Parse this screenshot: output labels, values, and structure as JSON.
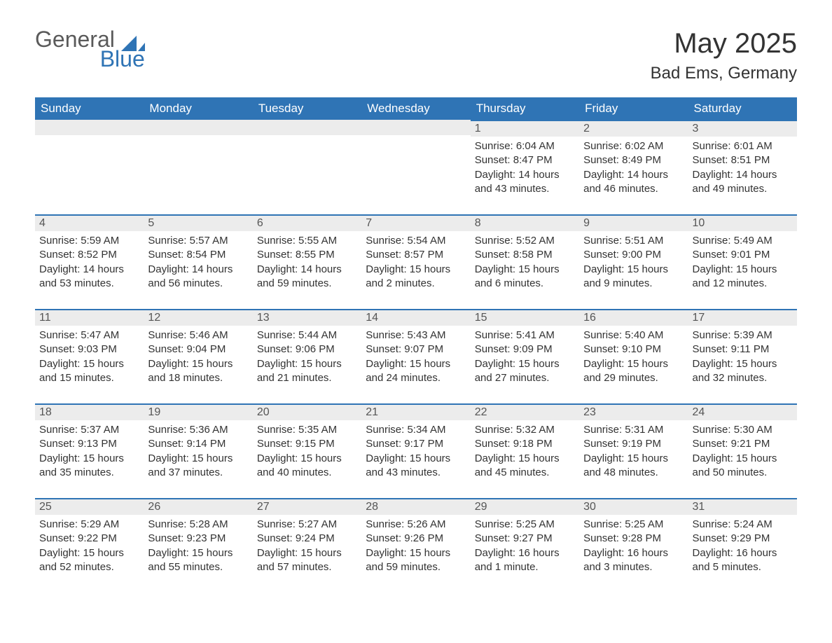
{
  "logo": {
    "word1": "General",
    "word2": "Blue",
    "brand_color": "#2f74b5"
  },
  "title": {
    "month": "May 2025",
    "location": "Bad Ems, Germany"
  },
  "colors": {
    "header_bg": "#2f74b5",
    "header_text": "#ffffff",
    "daybar_bg": "#ececec",
    "daybar_border": "#2f74b5",
    "body_text": "#333333",
    "page_bg": "#ffffff"
  },
  "typography": {
    "title_fontsize": 40,
    "location_fontsize": 24,
    "header_fontsize": 17,
    "cell_fontsize": 15
  },
  "calendar": {
    "type": "table",
    "columns": [
      "Sunday",
      "Monday",
      "Tuesday",
      "Wednesday",
      "Thursday",
      "Friday",
      "Saturday"
    ],
    "weeks": [
      [
        null,
        null,
        null,
        null,
        {
          "num": "1",
          "sunrise": "Sunrise: 6:04 AM",
          "sunset": "Sunset: 8:47 PM",
          "daylight": "Daylight: 14 hours and 43 minutes."
        },
        {
          "num": "2",
          "sunrise": "Sunrise: 6:02 AM",
          "sunset": "Sunset: 8:49 PM",
          "daylight": "Daylight: 14 hours and 46 minutes."
        },
        {
          "num": "3",
          "sunrise": "Sunrise: 6:01 AM",
          "sunset": "Sunset: 8:51 PM",
          "daylight": "Daylight: 14 hours and 49 minutes."
        }
      ],
      [
        {
          "num": "4",
          "sunrise": "Sunrise: 5:59 AM",
          "sunset": "Sunset: 8:52 PM",
          "daylight": "Daylight: 14 hours and 53 minutes."
        },
        {
          "num": "5",
          "sunrise": "Sunrise: 5:57 AM",
          "sunset": "Sunset: 8:54 PM",
          "daylight": "Daylight: 14 hours and 56 minutes."
        },
        {
          "num": "6",
          "sunrise": "Sunrise: 5:55 AM",
          "sunset": "Sunset: 8:55 PM",
          "daylight": "Daylight: 14 hours and 59 minutes."
        },
        {
          "num": "7",
          "sunrise": "Sunrise: 5:54 AM",
          "sunset": "Sunset: 8:57 PM",
          "daylight": "Daylight: 15 hours and 2 minutes."
        },
        {
          "num": "8",
          "sunrise": "Sunrise: 5:52 AM",
          "sunset": "Sunset: 8:58 PM",
          "daylight": "Daylight: 15 hours and 6 minutes."
        },
        {
          "num": "9",
          "sunrise": "Sunrise: 5:51 AM",
          "sunset": "Sunset: 9:00 PM",
          "daylight": "Daylight: 15 hours and 9 minutes."
        },
        {
          "num": "10",
          "sunrise": "Sunrise: 5:49 AM",
          "sunset": "Sunset: 9:01 PM",
          "daylight": "Daylight: 15 hours and 12 minutes."
        }
      ],
      [
        {
          "num": "11",
          "sunrise": "Sunrise: 5:47 AM",
          "sunset": "Sunset: 9:03 PM",
          "daylight": "Daylight: 15 hours and 15 minutes."
        },
        {
          "num": "12",
          "sunrise": "Sunrise: 5:46 AM",
          "sunset": "Sunset: 9:04 PM",
          "daylight": "Daylight: 15 hours and 18 minutes."
        },
        {
          "num": "13",
          "sunrise": "Sunrise: 5:44 AM",
          "sunset": "Sunset: 9:06 PM",
          "daylight": "Daylight: 15 hours and 21 minutes."
        },
        {
          "num": "14",
          "sunrise": "Sunrise: 5:43 AM",
          "sunset": "Sunset: 9:07 PM",
          "daylight": "Daylight: 15 hours and 24 minutes."
        },
        {
          "num": "15",
          "sunrise": "Sunrise: 5:41 AM",
          "sunset": "Sunset: 9:09 PM",
          "daylight": "Daylight: 15 hours and 27 minutes."
        },
        {
          "num": "16",
          "sunrise": "Sunrise: 5:40 AM",
          "sunset": "Sunset: 9:10 PM",
          "daylight": "Daylight: 15 hours and 29 minutes."
        },
        {
          "num": "17",
          "sunrise": "Sunrise: 5:39 AM",
          "sunset": "Sunset: 9:11 PM",
          "daylight": "Daylight: 15 hours and 32 minutes."
        }
      ],
      [
        {
          "num": "18",
          "sunrise": "Sunrise: 5:37 AM",
          "sunset": "Sunset: 9:13 PM",
          "daylight": "Daylight: 15 hours and 35 minutes."
        },
        {
          "num": "19",
          "sunrise": "Sunrise: 5:36 AM",
          "sunset": "Sunset: 9:14 PM",
          "daylight": "Daylight: 15 hours and 37 minutes."
        },
        {
          "num": "20",
          "sunrise": "Sunrise: 5:35 AM",
          "sunset": "Sunset: 9:15 PM",
          "daylight": "Daylight: 15 hours and 40 minutes."
        },
        {
          "num": "21",
          "sunrise": "Sunrise: 5:34 AM",
          "sunset": "Sunset: 9:17 PM",
          "daylight": "Daylight: 15 hours and 43 minutes."
        },
        {
          "num": "22",
          "sunrise": "Sunrise: 5:32 AM",
          "sunset": "Sunset: 9:18 PM",
          "daylight": "Daylight: 15 hours and 45 minutes."
        },
        {
          "num": "23",
          "sunrise": "Sunrise: 5:31 AM",
          "sunset": "Sunset: 9:19 PM",
          "daylight": "Daylight: 15 hours and 48 minutes."
        },
        {
          "num": "24",
          "sunrise": "Sunrise: 5:30 AM",
          "sunset": "Sunset: 9:21 PM",
          "daylight": "Daylight: 15 hours and 50 minutes."
        }
      ],
      [
        {
          "num": "25",
          "sunrise": "Sunrise: 5:29 AM",
          "sunset": "Sunset: 9:22 PM",
          "daylight": "Daylight: 15 hours and 52 minutes."
        },
        {
          "num": "26",
          "sunrise": "Sunrise: 5:28 AM",
          "sunset": "Sunset: 9:23 PM",
          "daylight": "Daylight: 15 hours and 55 minutes."
        },
        {
          "num": "27",
          "sunrise": "Sunrise: 5:27 AM",
          "sunset": "Sunset: 9:24 PM",
          "daylight": "Daylight: 15 hours and 57 minutes."
        },
        {
          "num": "28",
          "sunrise": "Sunrise: 5:26 AM",
          "sunset": "Sunset: 9:26 PM",
          "daylight": "Daylight: 15 hours and 59 minutes."
        },
        {
          "num": "29",
          "sunrise": "Sunrise: 5:25 AM",
          "sunset": "Sunset: 9:27 PM",
          "daylight": "Daylight: 16 hours and 1 minute."
        },
        {
          "num": "30",
          "sunrise": "Sunrise: 5:25 AM",
          "sunset": "Sunset: 9:28 PM",
          "daylight": "Daylight: 16 hours and 3 minutes."
        },
        {
          "num": "31",
          "sunrise": "Sunrise: 5:24 AM",
          "sunset": "Sunset: 9:29 PM",
          "daylight": "Daylight: 16 hours and 5 minutes."
        }
      ]
    ]
  }
}
